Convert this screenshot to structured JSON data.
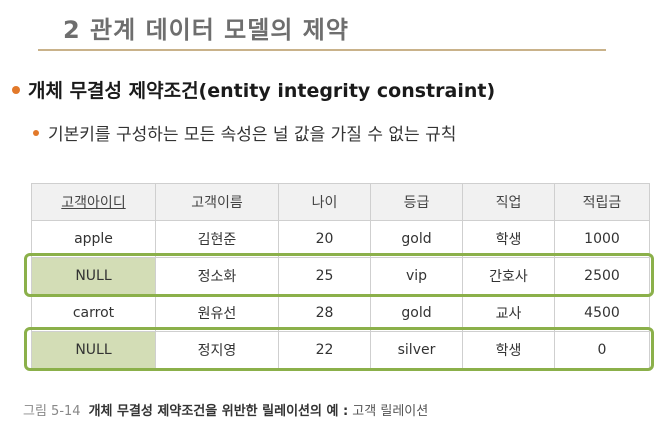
{
  "slide": {
    "title": "2 관계 데이터 모델의 제약"
  },
  "bullets": {
    "main": "개체 무결성 제약조건(entity integrity constraint)",
    "sub": "기본키를 구성하는 모든 속성은 널 값을 가질 수 없는 규칙"
  },
  "table": {
    "headers": [
      "고객아이디",
      "고객이름",
      "나이",
      "등급",
      "직업",
      "적립금"
    ],
    "key_column": "고객아이디",
    "rows": [
      [
        "apple",
        "김현준",
        "20",
        "gold",
        "학생",
        "1000"
      ],
      [
        "NULL",
        "정소화",
        "25",
        "vip",
        "간호사",
        "2500"
      ],
      [
        "carrot",
        "원유선",
        "28",
        "gold",
        "교사",
        "4500"
      ],
      [
        "NULL",
        "정지영",
        "22",
        "silver",
        "학생",
        "0"
      ]
    ],
    "violating_rows": [
      1,
      3
    ]
  },
  "caption": {
    "figure_number": "그림 5-14",
    "main": "개체 무결성 제약조건을 위반한 릴레이션의 예 :",
    "sub": " 고객 릴레이션"
  },
  "colors": {
    "bullet": "#e2792a",
    "highlight": "#8bb04a",
    "null_fill": "#d3ddb6",
    "header_fill": "#f1f1f1"
  }
}
